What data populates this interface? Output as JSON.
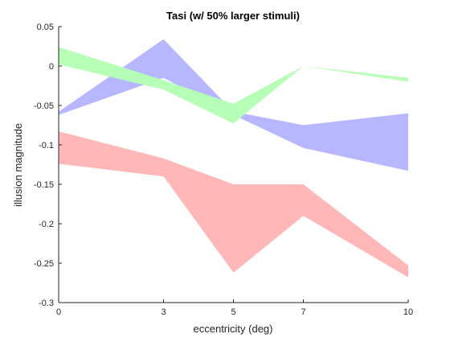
{
  "chart_data": {
    "type": "area",
    "title": "Tasi (w/ 50% larger stimuli)",
    "xlabel": "eccentricity (deg)",
    "ylabel": "illusion magnitude",
    "xlim": [
      0,
      10
    ],
    "ylim": [
      -0.3,
      0.05
    ],
    "xticks": [
      0,
      3,
      5,
      7,
      10
    ],
    "yticks": [
      0.05,
      0,
      -0.05,
      -0.1,
      -0.15,
      -0.2,
      -0.25,
      -0.3
    ],
    "xtick_labels": [
      "0",
      "3",
      "5",
      "7",
      "10"
    ],
    "ytick_labels": [
      "0.05",
      "0",
      "-0.05",
      "-0.1",
      "-0.15",
      "-0.2",
      "-0.25",
      "-0.3"
    ],
    "grid": false,
    "box": false,
    "x": [
      0,
      3,
      5,
      7,
      10
    ],
    "series": [
      {
        "color": "#b3b3ff",
        "upper": [
          -0.058,
          0.034,
          -0.058,
          -0.075,
          -0.06
        ],
        "lower": [
          -0.062,
          -0.015,
          -0.062,
          -0.104,
          -0.133
        ]
      },
      {
        "color": "#b3ffb3",
        "upper": [
          0.024,
          -0.018,
          -0.048,
          0.0,
          -0.015
        ],
        "lower": [
          0.002,
          -0.03,
          -0.073,
          0.0,
          -0.02
        ]
      },
      {
        "color": "#ffb3b3",
        "upper": [
          -0.083,
          -0.117,
          -0.15,
          -0.15,
          -0.253
        ],
        "lower": [
          -0.124,
          -0.14,
          -0.262,
          -0.19,
          -0.268
        ]
      }
    ]
  }
}
